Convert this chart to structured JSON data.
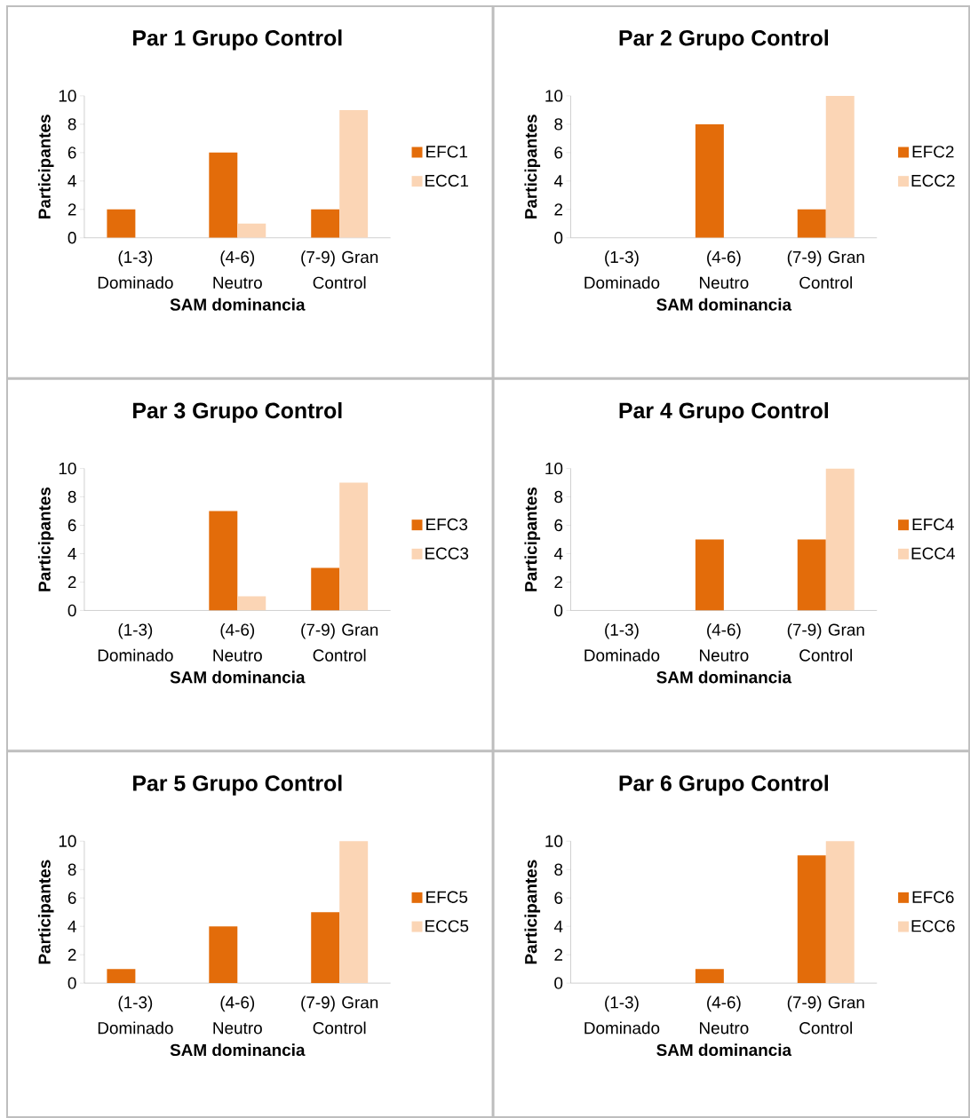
{
  "chart_data": [
    {
      "type": "bar",
      "title": "Par 1 Grupo Control",
      "xlabel": "SAM dominancia",
      "ylabel": "Participantes",
      "categories": [
        "(1-3) Dominado",
        "(4-6) Neutro",
        "(7-9) Gran Control"
      ],
      "ylim": [
        0,
        10
      ],
      "yticks": [
        0,
        2,
        4,
        6,
        8,
        10
      ],
      "legend": "right",
      "series": [
        {
          "name": "EFC1",
          "color": "#e36c0a",
          "values": [
            2,
            6,
            2
          ]
        },
        {
          "name": "ECC1",
          "color": "#fbd5b5",
          "values": [
            0,
            1,
            9
          ]
        }
      ]
    },
    {
      "type": "bar",
      "title": "Par 2 Grupo Control",
      "xlabel": "SAM dominancia",
      "ylabel": "Participantes",
      "categories": [
        "(1-3) Dominado",
        "(4-6) Neutro",
        "(7-9) Gran Control"
      ],
      "ylim": [
        0,
        10
      ],
      "yticks": [
        0,
        2,
        4,
        6,
        8,
        10
      ],
      "legend": "right",
      "series": [
        {
          "name": "EFC2",
          "color": "#e36c0a",
          "values": [
            0,
            8,
            2
          ]
        },
        {
          "name": "ECC2",
          "color": "#fbd5b5",
          "values": [
            0,
            0,
            10
          ]
        }
      ]
    },
    {
      "type": "bar",
      "title": "Par 3 Grupo Control",
      "xlabel": "SAM dominancia",
      "ylabel": "Participantes",
      "categories": [
        "(1-3) Dominado",
        "(4-6) Neutro",
        "(7-9) Gran Control"
      ],
      "ylim": [
        0,
        10
      ],
      "yticks": [
        0,
        2,
        4,
        6,
        8,
        10
      ],
      "legend": "right",
      "series": [
        {
          "name": "EFC3",
          "color": "#e36c0a",
          "values": [
            0,
            7,
            3
          ]
        },
        {
          "name": "ECC3",
          "color": "#fbd5b5",
          "values": [
            0,
            1,
            9
          ]
        }
      ]
    },
    {
      "type": "bar",
      "title": "Par 4 Grupo Control",
      "xlabel": "SAM dominancia",
      "ylabel": "Participantes",
      "categories": [
        "(1-3) Dominado",
        "(4-6) Neutro",
        "(7-9) Gran Control"
      ],
      "ylim": [
        0,
        10
      ],
      "yticks": [
        0,
        2,
        4,
        6,
        8,
        10
      ],
      "legend": "right",
      "series": [
        {
          "name": "EFC4",
          "color": "#e36c0a",
          "values": [
            0,
            5,
            5
          ]
        },
        {
          "name": "ECC4",
          "color": "#fbd5b5",
          "values": [
            0,
            0,
            10
          ]
        }
      ]
    },
    {
      "type": "bar",
      "title": "Par 5 Grupo Control",
      "xlabel": "SAM dominancia",
      "ylabel": "Participantes",
      "categories": [
        "(1-3) Dominado",
        "(4-6) Neutro",
        "(7-9) Gran Control"
      ],
      "ylim": [
        0,
        10
      ],
      "yticks": [
        0,
        2,
        4,
        6,
        8,
        10
      ],
      "legend": "right",
      "series": [
        {
          "name": "EFC5",
          "color": "#e36c0a",
          "values": [
            1,
            4,
            5
          ]
        },
        {
          "name": "ECC5",
          "color": "#fbd5b5",
          "values": [
            0,
            0,
            10
          ]
        }
      ]
    },
    {
      "type": "bar",
      "title": "Par 6 Grupo Control",
      "xlabel": "SAM dominancia",
      "ylabel": "Participantes",
      "categories": [
        "(1-3) Dominado",
        "(4-6) Neutro",
        "(7-9) Gran Control"
      ],
      "ylim": [
        0,
        10
      ],
      "yticks": [
        0,
        2,
        4,
        6,
        8,
        10
      ],
      "legend": "right",
      "series": [
        {
          "name": "EFC6",
          "color": "#e36c0a",
          "values": [
            0,
            1,
            9
          ]
        },
        {
          "name": "ECC6",
          "color": "#fbd5b5",
          "values": [
            0,
            0,
            10
          ]
        }
      ]
    }
  ]
}
